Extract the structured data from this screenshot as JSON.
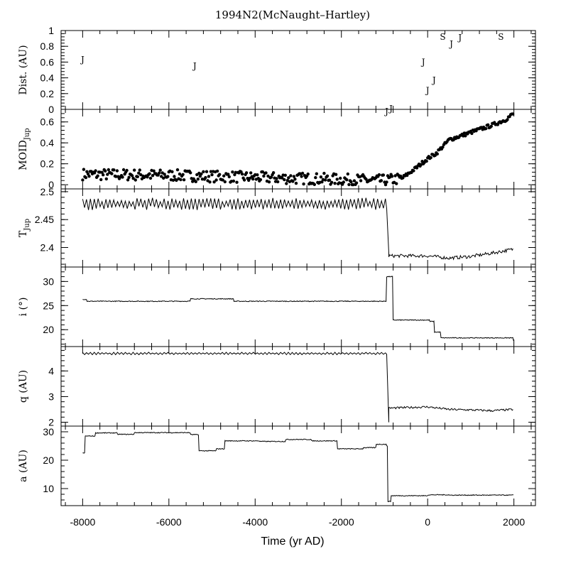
{
  "chart_data": {
    "type": "line",
    "title": "1994N2(McNaught–Hartley)",
    "xlabel": "Time (yr AD)",
    "xlim": [
      -8500,
      2500
    ],
    "xticks": [
      -8000,
      -6000,
      -4000,
      -2000,
      0,
      2000
    ],
    "xtick_labels": [
      "-8000",
      "-6000",
      "-4000",
      "-2000",
      "0",
      "2000"
    ],
    "panels": [
      {
        "id": "dist",
        "ylabel": "Dist. (AU)",
        "kind": "text-markers",
        "ylim": [
          0,
          1
        ],
        "yticks": [
          0,
          0.2,
          0.4,
          0.6,
          0.8,
          1
        ],
        "ytick_labels": [
          "0",
          "0.2",
          "0.4",
          "0.6",
          "0.8",
          "1"
        ],
        "markers": [
          {
            "label": "J",
            "x": -8000,
            "y": 0.64
          },
          {
            "label": "J",
            "x": -5400,
            "y": 0.56
          },
          {
            "label": "J",
            "x": -950,
            "y": -0.02
          },
          {
            "label": "J",
            "x": -850,
            "y": 0.02
          },
          {
            "label": "J",
            "x": -100,
            "y": 0.61
          },
          {
            "label": "J",
            "x": 0,
            "y": 0.25
          },
          {
            "label": "J",
            "x": 150,
            "y": 0.38
          },
          {
            "label": "S",
            "x": 350,
            "y": 0.93
          },
          {
            "label": "J",
            "x": 550,
            "y": 0.84
          },
          {
            "label": "J",
            "x": 750,
            "y": 0.92
          },
          {
            "label": "S",
            "x": 1700,
            "y": 0.93
          }
        ]
      },
      {
        "id": "moid",
        "ylabel": "MOID",
        "ylabel_sub": "Jup",
        "kind": "scatter",
        "ylim": [
          -0.04,
          0.72
        ],
        "yticks": [
          0,
          0.2,
          0.4,
          0.6
        ],
        "ytick_labels": [
          "0",
          "0.2",
          "0.4",
          "0.6"
        ],
        "trend": [
          [
            -8000,
            0.1
          ],
          [
            -6000,
            0.09
          ],
          [
            -4000,
            0.07
          ],
          [
            -2000,
            0.05
          ],
          [
            -1000,
            0.04
          ],
          [
            -600,
            0.06
          ],
          [
            -300,
            0.15
          ],
          [
            0,
            0.25
          ],
          [
            200,
            0.3
          ],
          [
            500,
            0.43
          ],
          [
            1000,
            0.5
          ],
          [
            1500,
            0.57
          ],
          [
            1800,
            0.62
          ],
          [
            1990,
            0.68
          ]
        ]
      },
      {
        "id": "tjup",
        "ylabel": "T",
        "ylabel_sub": "Jup",
        "kind": "line",
        "ylim": [
          2.365,
          2.505
        ],
        "yticks": [
          2.4,
          2.45,
          2.5
        ],
        "ytick_labels": [
          "2.4",
          "2.45",
          "2.5"
        ],
        "segments": [
          {
            "x": [
              -8000,
              -950
            ],
            "base": 2.478,
            "amp": 0.011
          },
          {
            "x": [
              -950,
              -900
            ],
            "values": [
              2.47,
              2.39
            ]
          },
          {
            "x": [
              -900,
              1990
            ],
            "trend": [
              [
                -900,
                2.385
              ],
              [
                0,
                2.385
              ],
              [
                500,
                2.381
              ],
              [
                1000,
                2.384
              ],
              [
                1500,
                2.39
              ],
              [
                1990,
                2.397
              ]
            ],
            "amp": 0.003
          }
        ]
      },
      {
        "id": "incl",
        "ylabel": "i (°)",
        "kind": "line",
        "ylim": [
          16.5,
          33
        ],
        "yticks": [
          20,
          25,
          30
        ],
        "ytick_labels": [
          "20",
          "25",
          "30"
        ],
        "steps": [
          [
            -8000,
            26.3
          ],
          [
            -7900,
            25.9
          ],
          [
            -5500,
            26.4
          ],
          [
            -4500,
            25.9
          ],
          [
            -1000,
            25.9
          ],
          [
            -950,
            31.0
          ],
          [
            -800,
            22.0
          ],
          [
            50,
            21.7
          ],
          [
            150,
            19.5
          ],
          [
            300,
            18.3
          ],
          [
            1990,
            17.8
          ]
        ]
      },
      {
        "id": "q",
        "ylabel": "q (AU)",
        "kind": "line",
        "ylim": [
          1.85,
          4.95
        ],
        "yticks": [
          2,
          3,
          4
        ],
        "ytick_labels": [
          "2",
          "3",
          "4"
        ],
        "segments": [
          {
            "x": [
              -8000,
              -950
            ],
            "base": 4.68,
            "amp": 0.05
          },
          {
            "x": [
              -950,
              -900
            ],
            "values": [
              4.65,
              2.0
            ]
          },
          {
            "x": [
              -900,
              1990
            ],
            "trend": [
              [
                -900,
                2.55
              ],
              [
                0,
                2.6
              ],
              [
                500,
                2.5
              ],
              [
                1000,
                2.48
              ],
              [
                1500,
                2.45
              ],
              [
                1990,
                2.5
              ]
            ],
            "amp": 0.04
          }
        ]
      },
      {
        "id": "a",
        "ylabel": "a (AU)",
        "kind": "line",
        "ylim": [
          4,
          32
        ],
        "yticks": [
          10,
          20,
          30
        ],
        "ytick_labels": [
          "10",
          "20",
          "30"
        ],
        "steps": [
          [
            -8000,
            22.5
          ],
          [
            -7950,
            28.5
          ],
          [
            -7700,
            29.6
          ],
          [
            -7200,
            29.1
          ],
          [
            -6800,
            29.7
          ],
          [
            -5500,
            29.0
          ],
          [
            -5300,
            23.3
          ],
          [
            -4900,
            24.0
          ],
          [
            -4700,
            26.8
          ],
          [
            -3900,
            26.6
          ],
          [
            -3300,
            27.3
          ],
          [
            -2700,
            26.8
          ],
          [
            -2100,
            24.0
          ],
          [
            -1500,
            24.4
          ],
          [
            -1200,
            25.6
          ],
          [
            -950,
            25.0
          ],
          [
            -930,
            5.5
          ],
          [
            -850,
            7.5
          ],
          [
            0,
            7.8
          ],
          [
            500,
            7.7
          ],
          [
            1990,
            7.7
          ]
        ]
      }
    ]
  }
}
